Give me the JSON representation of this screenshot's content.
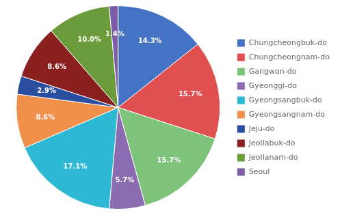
{
  "chart_data": {
    "type": "pie",
    "categories": [
      "Chungcheongbuk-do",
      "Chungcheongnam-do",
      "Gangwon-do",
      "Gyeonggi-do",
      "Gyeongsangbuk-do",
      "Gyeongsangnam-do",
      "Jeju-do",
      "Jeollabuk-do",
      "Jeollanam-do",
      "Seoul"
    ],
    "values": [
      14.3,
      15.7,
      15.7,
      5.7,
      17.1,
      8.6,
      2.9,
      8.6,
      10.0,
      1.4
    ],
    "value_labels": [
      "14.3%",
      "15.7%",
      "15.7%",
      "5.7%",
      "17.1%",
      "8.6%",
      "2.9%",
      "8.6%",
      "10.0%",
      "1.4%"
    ],
    "colors": [
      "#4472C4",
      "#E05050",
      "#7DC47A",
      "#8B6BB1",
      "#2DB8D4",
      "#F0904A",
      "#2B4FA0",
      "#8B2020",
      "#6B9B3A",
      "#7B5EA7"
    ],
    "legend": "right",
    "data_labels": true
  }
}
